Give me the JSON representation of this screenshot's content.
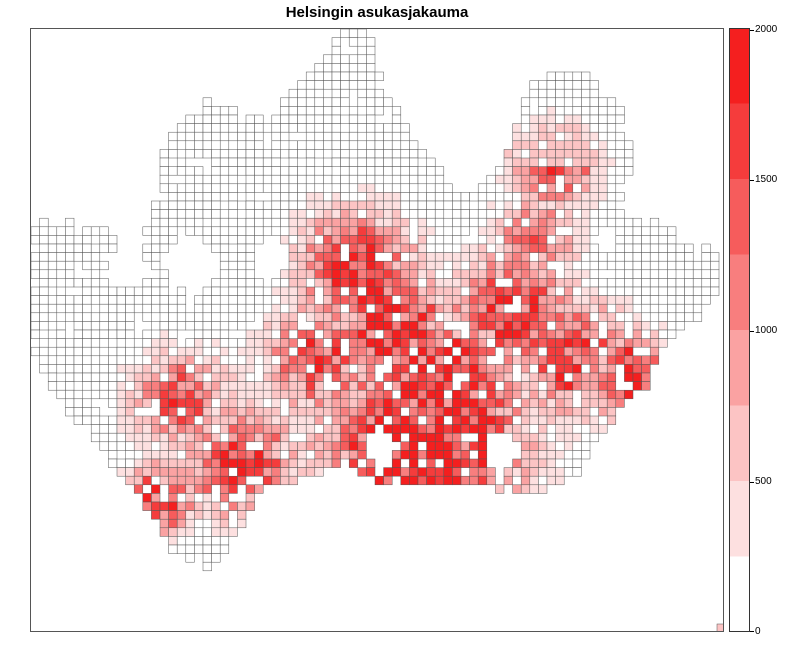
{
  "title": "Helsingin asukasjakauma",
  "legend": {
    "min": 0,
    "max": 2000,
    "ticks": [
      "0",
      "500",
      "1000",
      "1500",
      "2000"
    ],
    "bin_colors": [
      "#ffffff",
      "#fde0e0",
      "#fcc4c4",
      "#faa2a2",
      "#f87e7e",
      "#f65c5c",
      "#f53c3c",
      "#f41f1f"
    ]
  },
  "chart_data": {
    "type": "heatmap",
    "title": "Helsingin asukasjakauma",
    "value_range": [
      0,
      2000
    ],
    "legend_placement": "right",
    "colorbar_ticks": [
      0,
      500,
      1000,
      1500,
      2000
    ],
    "color_scale": "white to red"
  }
}
